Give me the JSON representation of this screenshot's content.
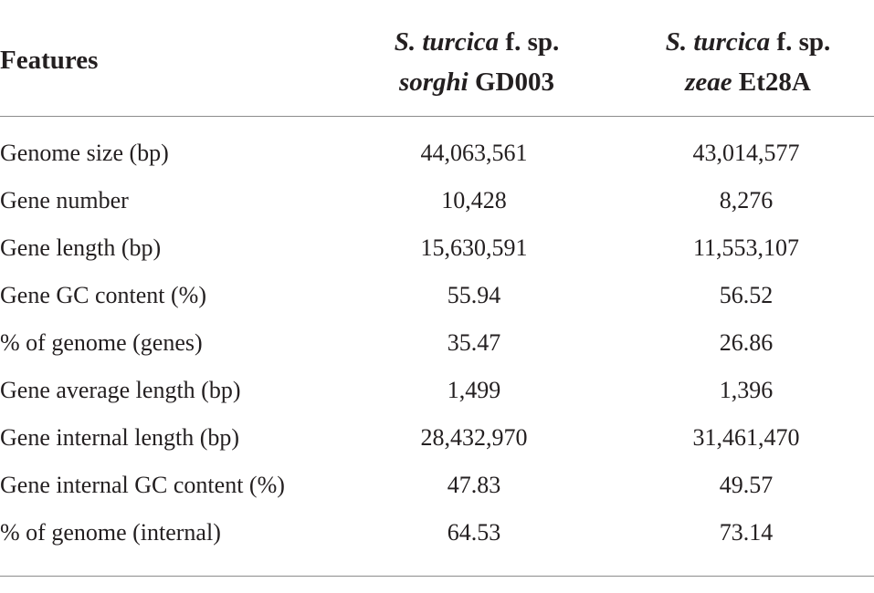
{
  "table": {
    "header": {
      "features": "Features",
      "col1": {
        "line1_italic": "S. turcica",
        "line1_rest": " f. sp.",
        "line2_italic": "sorghi",
        "line2_rest": " GD003"
      },
      "col2": {
        "line1_italic": "S. turcica",
        "line1_rest": " f. sp.",
        "line2_italic": "zeae",
        "line2_rest": " Et28A"
      }
    },
    "rows": [
      {
        "label": "Genome size (bp)",
        "gd003": "44,063,561",
        "et28a": "43,014,577"
      },
      {
        "label": "Gene number",
        "gd003": "10,428",
        "et28a": "8,276"
      },
      {
        "label": "Gene length (bp)",
        "gd003": "15,630,591",
        "et28a": "11,553,107"
      },
      {
        "label": "Gene GC content (%)",
        "gd003": "55.94",
        "et28a": "56.52"
      },
      {
        "label": "% of genome (genes)",
        "gd003": "35.47",
        "et28a": "26.86"
      },
      {
        "label": "Gene average length (bp)",
        "gd003": "1,499",
        "et28a": "1,396"
      },
      {
        "label": "Gene internal length (bp)",
        "gd003": "28,432,970",
        "et28a": "31,461,470"
      },
      {
        "label": "Gene internal GC content (%)",
        "gd003": "47.83",
        "et28a": "49.57"
      },
      {
        "label": "% of genome (internal)",
        "gd003": "64.53",
        "et28a": "73.14"
      }
    ]
  }
}
